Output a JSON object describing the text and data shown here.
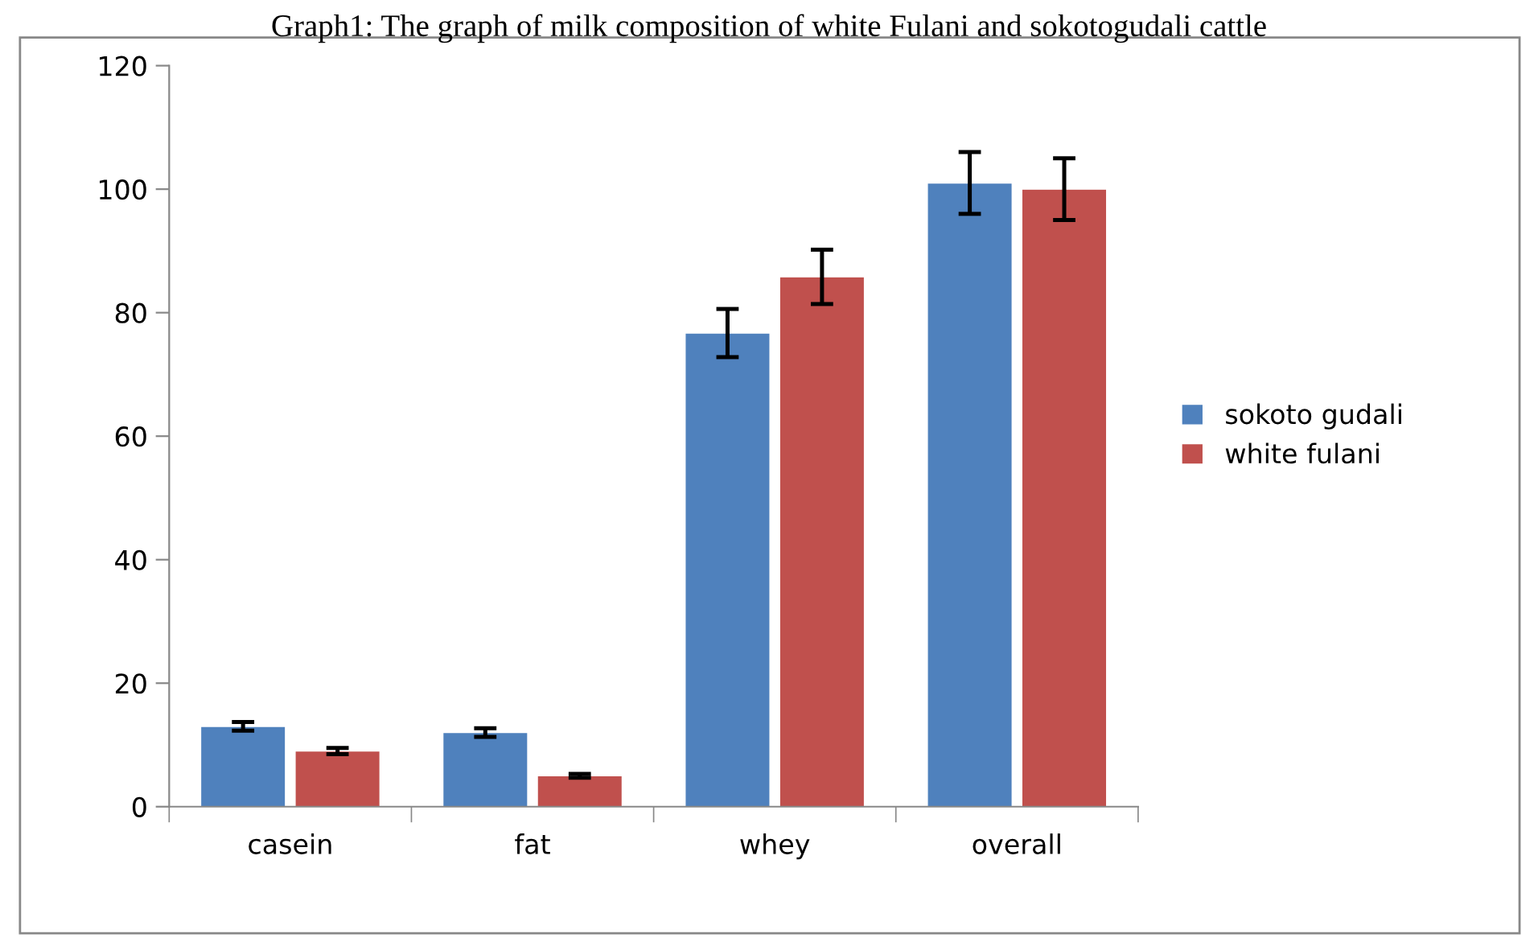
{
  "chart_data": {
    "type": "bar",
    "title": "Graph1: The graph of milk composition of white Fulani and sokotogudali cattle",
    "categories": [
      "casein",
      "fat",
      "whey",
      "overall"
    ],
    "series": [
      {
        "name": "sokoto gudali",
        "color": "#4f81bd",
        "values": [
          13,
          12,
          76.7,
          101
        ],
        "errors": [
          0.7,
          0.7,
          3.9,
          5
        ]
      },
      {
        "name": "white fulani",
        "color": "#c0504d",
        "values": [
          9,
          5,
          85.8,
          100
        ],
        "errors": [
          0.5,
          0.3,
          4.4,
          5
        ]
      }
    ],
    "ylim": [
      0,
      120
    ],
    "yticks": [
      0,
      20,
      40,
      60,
      80,
      100,
      120
    ],
    "grid": false,
    "legend": "right"
  }
}
